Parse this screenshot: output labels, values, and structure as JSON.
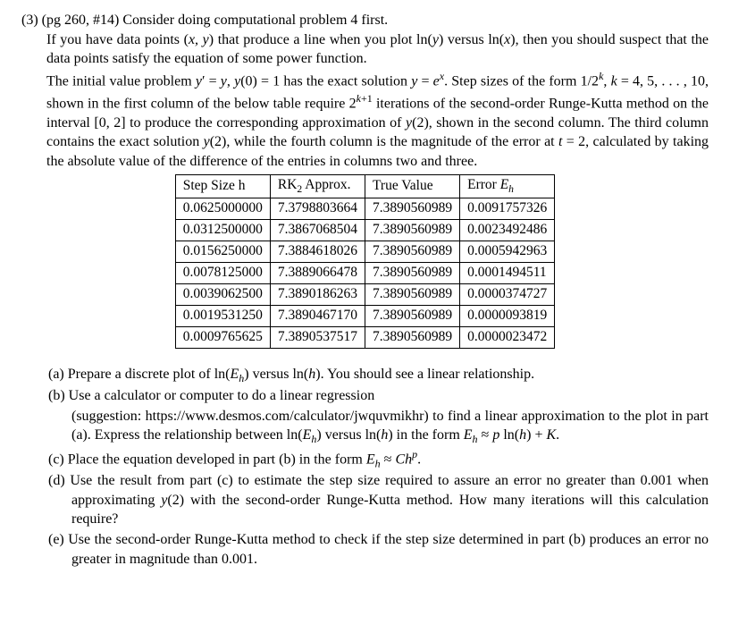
{
  "header": {
    "num": "(3)",
    "ref": "(pg 260, #14) Consider doing computational problem 4 first.",
    "p1a": "If you have data points (",
    "p1b": ") that produce a line when you plot ln(",
    "p1c": ") versus ln(",
    "p1d": "), then you should suspect that the data points satisfy the equation of some power function.",
    "p2a": "The initial value problem ",
    "p2b": "(0) = 1 has the exact solution ",
    "p2c": ".  Step sizes of the form 1/2",
    "p2d": " = 4, 5, . . . , 10, shown in the first column of the below table require 2",
    "p2e": " iterations of the second-order Runge-Kutta method on the interval [0, 2] to produce the corresponding approximation of ",
    "p2f": "(2), shown in the second column.  The third column contains the exact solution ",
    "p2g": "(2), while the fourth column is the magnitude of the error at ",
    "p2h": " = 2, calculated by taking the absolute value of the difference of the entries in columns two and three."
  },
  "table": {
    "h1": "Step Size h",
    "h2a": "RK",
    "h2b": " Approx.",
    "h3": "True Value",
    "h4a": "Error ",
    "rows": [
      [
        "0.0625000000",
        "7.3798803664",
        "7.3890560989",
        "0.0091757326"
      ],
      [
        "0.0312500000",
        "7.3867068504",
        "7.3890560989",
        "0.0023492486"
      ],
      [
        "0.0156250000",
        "7.3884618026",
        "7.3890560989",
        "0.0005942963"
      ],
      [
        "0.0078125000",
        "7.3889066478",
        "7.3890560989",
        "0.0001494511"
      ],
      [
        "0.0039062500",
        "7.3890186263",
        "7.3890560989",
        "0.0000374727"
      ],
      [
        "0.0019531250",
        "7.3890467170",
        "7.3890560989",
        "0.0000093819"
      ],
      [
        "0.0009765625",
        "7.3890537517",
        "7.3890560989",
        "0.0000023472"
      ]
    ]
  },
  "parts": {
    "a_lbl": "(a)",
    "a1": "Prepare a discrete plot of ln(",
    "a2": ") versus ln(",
    "a3": "). You should see a linear relationship.",
    "b_lbl": "(b)",
    "b1": "Use a calculator or computer to do a linear regression",
    "b2": "(suggestion: https://www.desmos.com/calculator/jwquvmikhr) to find a linear approximation to the plot in part (a). Express the relationship between ln(",
    "b3": ") versus ln(",
    "b4": ") in the form ",
    "b5": " ln(",
    "b6": ") + ",
    "b7": ".",
    "c_lbl": "(c)",
    "c1": "Place the equation developed in part (b) in the form ",
    "c2": ".",
    "d_lbl": "(d)",
    "d1": "Use the result from part (c) to estimate the step size required to assure an error no greater than 0.001 when approximating ",
    "d2": "(2) with the second-order Runge-Kutta method. How many iterations will this calculation require?",
    "e_lbl": "(e)",
    "e1": "Use the second-order Runge-Kutta method to check if the step size determined in part (b) produces an error no greater in magnitude than 0.001."
  }
}
